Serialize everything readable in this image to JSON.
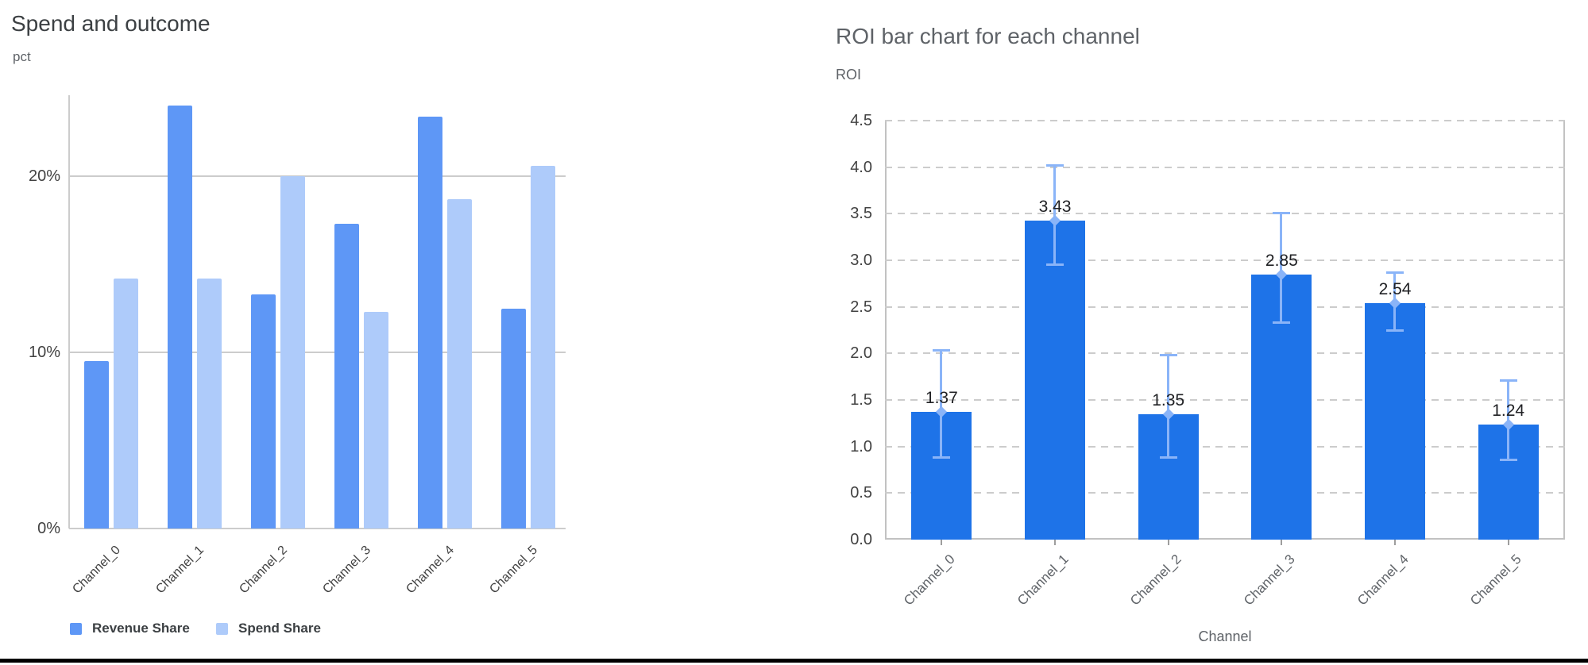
{
  "page": {
    "background": "#ffffff",
    "bottom_rule_color": "#000000"
  },
  "colors": {
    "left_title": "#3c4043",
    "right_title": "#5f6368",
    "axis_unit_label": "#5f6368",
    "tick_label": "#424242",
    "right_cat_label": "#5f6368",
    "value_label": "#202124",
    "gridline": "#cccccc",
    "frame": "#c2c2c2",
    "x_tick_mark": "#9e9e9e",
    "revenue_bar": "#5e97f6",
    "spend_bar": "#aecbfa",
    "roi_bar": "#1e73e8",
    "error_bar": "#8ab4f8"
  },
  "chart_data": [
    {
      "type": "bar",
      "title": "Spend and outcome",
      "ylabel": "pct",
      "xlabel": "",
      "categories": [
        "Channel_0",
        "Channel_1",
        "Channel_2",
        "Channel_3",
        "Channel_4",
        "Channel_5"
      ],
      "series": [
        {
          "name": "Revenue Share",
          "color": "#5e97f6",
          "values": [
            9.5,
            24.0,
            13.3,
            17.3,
            23.4,
            12.5
          ]
        },
        {
          "name": "Spend Share",
          "color": "#aecbfa",
          "values": [
            14.2,
            14.2,
            20.0,
            12.3,
            18.7,
            20.6
          ]
        }
      ],
      "y_ticks": [
        "0%",
        "10%",
        "20%"
      ],
      "y_tick_values": [
        0,
        10,
        20
      ],
      "ylim": [
        0,
        24.6
      ],
      "grid": true,
      "legend_position": "bottom-left",
      "x_tick_rotation_deg": 45
    },
    {
      "type": "bar",
      "title": "ROI bar chart for each channel",
      "ylabel": "ROI",
      "xlabel": "Channel",
      "categories": [
        "Channel_0",
        "Channel_1",
        "Channel_2",
        "Channel_3",
        "Channel_4",
        "Channel_5"
      ],
      "values": [
        1.37,
        3.43,
        1.35,
        2.85,
        2.54,
        1.24
      ],
      "value_labels": [
        "1.37",
        "3.43",
        "1.35",
        "2.85",
        "2.54",
        "1.24"
      ],
      "error_low": [
        0.88,
        2.95,
        0.88,
        2.33,
        2.24,
        0.85
      ],
      "error_high": [
        2.04,
        4.02,
        1.99,
        3.51,
        2.87,
        1.71
      ],
      "y_ticks": [
        "0.0",
        "0.5",
        "1.0",
        "1.5",
        "2.0",
        "2.5",
        "3.0",
        "3.5",
        "4.0",
        "4.5"
      ],
      "y_tick_values": [
        0,
        0.5,
        1.0,
        1.5,
        2.0,
        2.5,
        3.0,
        3.5,
        4.0,
        4.5
      ],
      "ylim": [
        0,
        4.5
      ],
      "grid": "dashed",
      "x_tick_rotation_deg": 45
    }
  ]
}
